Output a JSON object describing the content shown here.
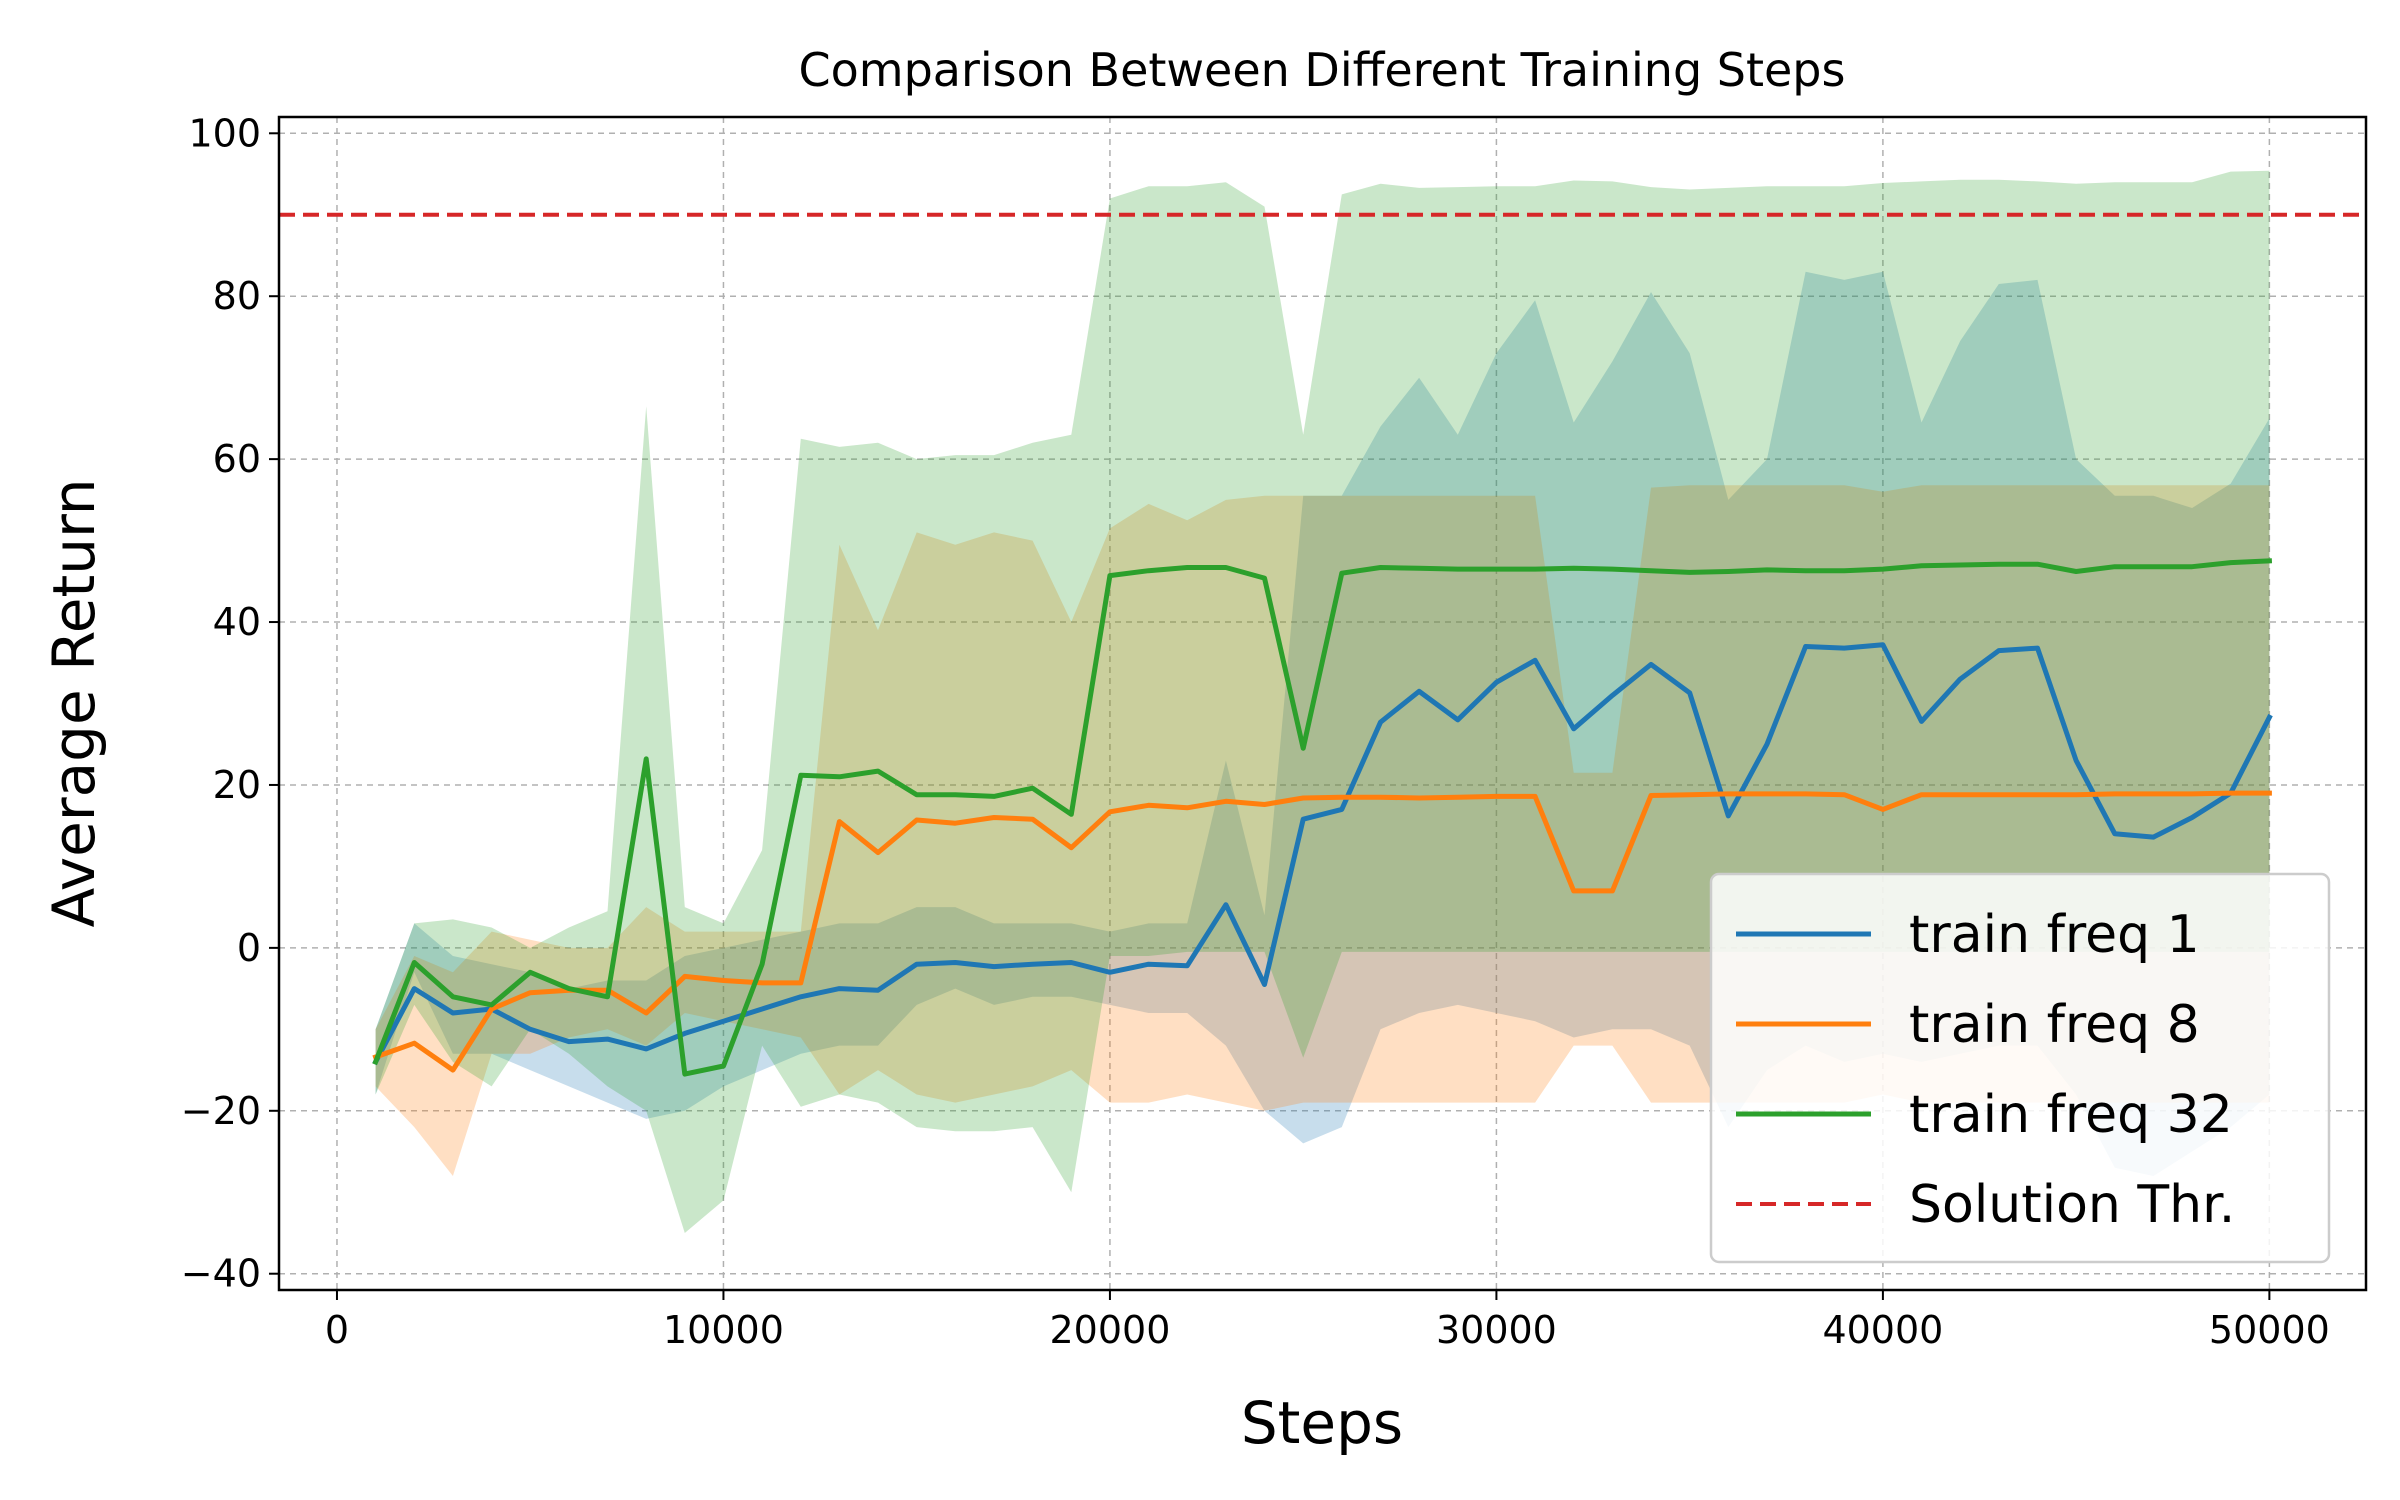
{
  "chart_data": {
    "type": "line",
    "title": "Comparison Between Different Training Steps",
    "xlabel": "Steps",
    "ylabel": "Average Return",
    "xlim": [
      -1500,
      52500
    ],
    "ylim": [
      -42,
      102
    ],
    "xticks": [
      0,
      10000,
      20000,
      30000,
      40000,
      50000
    ],
    "yticks": [
      -40,
      -20,
      0,
      20,
      40,
      60,
      80,
      100
    ],
    "grid": true,
    "legend_position": "bottom-right",
    "x": [
      1000,
      2000,
      3000,
      4000,
      5000,
      6000,
      7000,
      8000,
      9000,
      10000,
      11000,
      12000,
      13000,
      14000,
      15000,
      16000,
      17000,
      18000,
      19000,
      20000,
      21000,
      22000,
      23000,
      24000,
      25000,
      26000,
      27000,
      28000,
      29000,
      30000,
      31000,
      32000,
      33000,
      34000,
      35000,
      36000,
      37000,
      38000,
      39000,
      40000,
      41000,
      42000,
      43000,
      44000,
      45000,
      46000,
      47000,
      48000,
      49000,
      50000
    ],
    "series": [
      {
        "name": "train freq 1",
        "color": "#1f77b4",
        "values": [
          -14,
          -5,
          -8,
          -7.5,
          -10,
          -11.5,
          -11.2,
          -12.4,
          -10.5,
          -9,
          -7.5,
          -6,
          -5,
          -5.2,
          -2,
          -1.8,
          -2.3,
          -2,
          -1.8,
          -3,
          -2,
          -2.2,
          5.3,
          -4.5,
          15.8,
          17,
          27.7,
          31.5,
          28,
          32.6,
          35.3,
          26.9,
          31,
          34.8,
          31.3,
          16.2,
          25,
          37,
          36.8,
          37.2,
          27.8,
          33,
          36.5,
          36.8,
          23,
          14,
          13.6,
          16,
          19,
          28.3
        ],
        "lower": [
          -18,
          -3,
          -13,
          -13,
          -15,
          -17,
          -19,
          -21,
          -20,
          -17,
          -15,
          -13,
          -12,
          -12,
          -7,
          -5,
          -7,
          -6,
          -6,
          -7,
          -8,
          -8,
          -12,
          -20,
          -24,
          -22,
          -10,
          -8,
          -7,
          -8,
          -9,
          -11,
          -10,
          -10,
          -12,
          -22,
          -15,
          -12,
          -14,
          -13,
          -14,
          -13,
          -12,
          -12,
          -18,
          -27,
          -28,
          -25,
          -22,
          -18
        ],
        "upper": [
          -10,
          3,
          -1,
          -2,
          -3,
          -5,
          -4,
          -4,
          -1,
          0,
          1,
          2,
          3,
          3,
          5,
          5,
          3,
          3,
          3,
          2,
          3,
          3,
          23,
          4,
          55.5,
          55.5,
          64,
          70,
          63,
          73,
          79.5,
          64.5,
          72,
          80.5,
          73,
          55,
          60,
          83,
          82,
          83,
          64.5,
          74.5,
          81.5,
          82,
          60,
          55.5,
          55.5,
          54,
          57,
          65
        ]
      },
      {
        "name": "train freq 8",
        "color": "#ff7f0e",
        "values": [
          -13.4,
          -11.7,
          -15,
          -7.5,
          -5.5,
          -5.2,
          -5.2,
          -8,
          -3.5,
          -4,
          -4.3,
          -4.3,
          15.5,
          11.7,
          15.7,
          15.3,
          16,
          15.8,
          12.3,
          16.7,
          17.5,
          17.2,
          18,
          17.6,
          18.4,
          18.5,
          18.5,
          18.4,
          18.5,
          18.6,
          18.6,
          7,
          7,
          18.7,
          18.8,
          18.9,
          18.9,
          18.9,
          18.8,
          17,
          18.8,
          18.8,
          18.8,
          18.8,
          18.8,
          18.9,
          18.9,
          18.9,
          19,
          19
        ],
        "lower": [
          -17,
          -22,
          -28,
          -13,
          -13,
          -11,
          -10,
          -12,
          -8,
          -9,
          -10,
          -11,
          -18,
          -15,
          -18,
          -19,
          -18,
          -17,
          -15,
          -19,
          -19,
          -18,
          -19,
          -20,
          -19,
          -19,
          -19,
          -19,
          -19,
          -19,
          -19,
          -12,
          -12,
          -19,
          -19,
          -19,
          -19,
          -19,
          -19,
          -18,
          -19,
          -19,
          -19,
          -19,
          -19,
          -19,
          -19,
          -19,
          -19,
          -19
        ],
        "upper": [
          -10,
          -1,
          -3,
          2,
          1,
          0,
          0,
          5,
          2,
          2,
          2,
          2,
          49.5,
          39,
          51,
          49.5,
          51,
          50,
          40,
          51.5,
          54.5,
          52.5,
          55,
          55.5,
          55.5,
          55.5,
          55.5,
          55.5,
          55.5,
          55.5,
          55.5,
          21.5,
          21.5,
          56.5,
          56.8,
          56.8,
          56.8,
          56.8,
          56.8,
          56,
          56.8,
          56.8,
          56.8,
          56.8,
          56.8,
          56.8,
          56.8,
          56.8,
          56.8,
          56.8
        ]
      },
      {
        "name": "train freq 32",
        "color": "#2ca02c",
        "values": [
          -14,
          -1.8,
          -6,
          -7,
          -3,
          -5,
          -6,
          23.2,
          -15.5,
          -14.5,
          -2,
          21.2,
          21,
          21.7,
          18.8,
          18.8,
          18.6,
          19.6,
          16.4,
          45.7,
          46.3,
          46.7,
          46.7,
          45.4,
          24.5,
          46,
          46.7,
          46.6,
          46.5,
          46.5,
          46.5,
          46.6,
          46.5,
          46.3,
          46.1,
          46.2,
          46.4,
          46.3,
          46.3,
          46.5,
          46.9,
          47,
          47.1,
          47.1,
          46.2,
          46.8,
          46.8,
          46.8,
          47.3,
          47.5
        ],
        "lower": [
          -18,
          -7,
          -14,
          -17,
          -10,
          -13,
          -17,
          -20,
          -35,
          -31,
          -12,
          -19.5,
          -18,
          -19,
          -22,
          -22.5,
          -22.5,
          -22,
          -30,
          -1,
          -1,
          -0.5,
          -0.5,
          -0.5,
          -13.5,
          -0.5,
          -0.5,
          -0.5,
          -0.5,
          -0.5,
          -0.5,
          -0.5,
          -0.5,
          -0.5,
          -0.5,
          -0.5,
          -0.5,
          -0.5,
          -0.5,
          -0.5,
          -0.5,
          -0.5,
          -0.5,
          -0.5,
          -0.5,
          -0.5,
          -0.5,
          -0.5,
          -0.5,
          -0.5
        ],
        "upper": [
          -10,
          3,
          3.5,
          2.5,
          0,
          2.5,
          4.5,
          66.5,
          5,
          3,
          12,
          62.5,
          61.5,
          62,
          60,
          60.5,
          60.5,
          62,
          63,
          92,
          93.5,
          93.5,
          94,
          91,
          63,
          92.5,
          93.8,
          93.3,
          93.4,
          93.5,
          93.5,
          94.2,
          94.1,
          93.4,
          93.1,
          93.3,
          93.5,
          93.5,
          93.5,
          93.9,
          94.1,
          94.3,
          94.3,
          94.1,
          93.8,
          94,
          94,
          94,
          95.3,
          95.4
        ]
      }
    ],
    "threshold": {
      "name": "Solution Thr.",
      "value": 90,
      "color": "#d62728",
      "style": "dashed"
    }
  }
}
